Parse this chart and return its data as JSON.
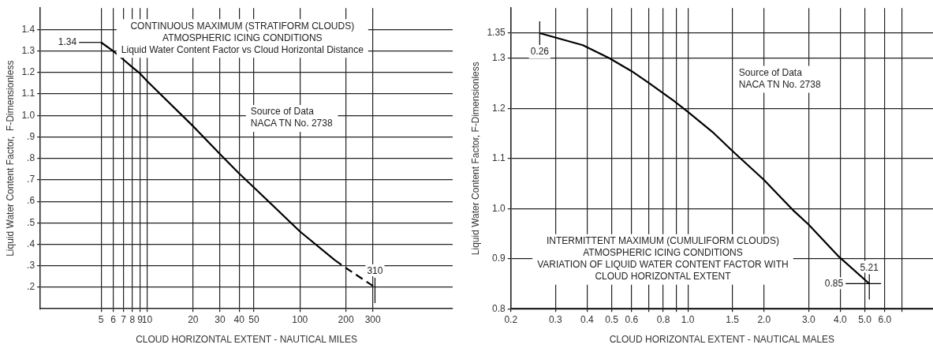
{
  "chart_data": [
    {
      "type": "line",
      "title": "CONTINUOUS MAXIMUM (STRATIFORM CLOUDS)\nATMOSPHERIC ICING CONDITIONS",
      "subtitle": "Liquid Water Content Factor vs Cloud Horizontal Distance",
      "xlabel": "CLOUD HORIZONTAL EXTENT - NAUTICAL MILES",
      "ylabel": "Liquid Water Content Factor,  F-Dimensionless",
      "annotations": [
        {
          "text": "1.34",
          "x": 5,
          "y": 1.34
        },
        {
          "text": "310",
          "x": 310,
          "y": 0.2
        },
        "Source of Data\nNACA TN No. 2738"
      ],
      "series": [
        {
          "color": "#000000",
          "x": [
            5,
            6,
            7,
            8,
            9,
            10,
            20,
            30,
            40,
            50,
            100,
            170
          ],
          "values": [
            1.34,
            1.3,
            1.26,
            1.225,
            1.195,
            1.16,
            0.95,
            0.82,
            0.73,
            0.665,
            0.46,
            0.325
          ],
          "line_style": "solid"
        },
        {
          "color": "#000000",
          "x": [
            170,
            200,
            310
          ],
          "values": [
            0.325,
            0.29,
            0.2
          ],
          "line_style": "dashed"
        }
      ],
      "log": "x",
      "xlim": [
        2,
        1000
      ],
      "ylim": [
        0.1,
        1.5
      ],
      "xticks": [
        5,
        6,
        7,
        8,
        9,
        10,
        20,
        30,
        40,
        50,
        100,
        200,
        300
      ],
      "yticks": [
        {
          "value": 0.2,
          "label": ".2"
        },
        {
          "value": 0.3,
          "label": ".3"
        },
        {
          "value": 0.4,
          "label": ".4"
        },
        {
          "value": 0.5,
          "label": ".5"
        },
        {
          "value": 0.6,
          "label": ".6"
        },
        {
          "value": 0.7,
          "label": ".7"
        },
        {
          "value": 0.8,
          "label": ".8"
        },
        {
          "value": 0.9,
          "label": ".9"
        },
        {
          "value": 1,
          "label": "1.0"
        },
        1.1,
        1.2,
        1.3,
        1.4
      ],
      "grid": true
    },
    {
      "type": "line",
      "title": "INTERMITTENT MAXIMUM (CUMULIFORM CLOUDS)\nATMOSPHERIC ICING CONDITIONS",
      "subtitle": "VARIATION OF LIQUID WATER CONTENT FACTOR WITH\nCLOUD HORIZONTAL EXTENT",
      "xlabel": "CLOUD HORIZONTAL EXTENT - NAUTICAL MALES",
      "ylabel": "Liquid Water Content Factor, F-Dimensionless",
      "annotations": [
        {
          "text": "0.26",
          "x": 0.26,
          "y": 1.35
        },
        {
          "text": "5.21",
          "x": 5.21,
          "y": 0.85
        },
        {
          "text": "0.85",
          "x": 5.21,
          "y": 0.85
        },
        "Source of Data\nNACA TN No. 2738"
      ],
      "series": [
        {
          "color": "#000000",
          "x": [
            0.26,
            0.385,
            0.49,
            0.6,
            0.7,
            0.875,
            1,
            1.25,
            1.5,
            2,
            2.6,
            3,
            3.95,
            5.21
          ],
          "values": [
            1.35,
            1.326,
            1.3,
            1.274,
            1.251,
            1.216,
            1.193,
            1.153,
            1.115,
            1.057,
            0.997,
            0.968,
            0.904,
            0.85
          ],
          "line_style": "solid"
        }
      ],
      "log": "x",
      "xlim": [
        0.2,
        9.3
      ],
      "ylim": [
        0.8,
        1.4
      ],
      "xticks": [
        {
          "value": 0.2,
          "label": "0.2"
        },
        {
          "value": 0.3,
          "label": "0.3"
        },
        {
          "value": 0.4,
          "label": "0.4"
        },
        {
          "value": 0.5,
          "label": "0.5"
        },
        {
          "value": 0.6,
          "label": "0.6"
        },
        {
          "value": 0.7,
          "label": null
        },
        {
          "value": 0.8,
          "label": "0.8"
        },
        {
          "value": 0.9,
          "label": null
        },
        {
          "value": 1,
          "label": "1.0"
        },
        {
          "value": 1.5,
          "label": "1.5"
        },
        {
          "value": 2,
          "label": "2.0"
        },
        {
          "value": 3,
          "label": "3.0"
        },
        {
          "value": 4,
          "label": "4.0"
        },
        {
          "value": 5,
          "label": "5.0"
        },
        {
          "value": 6,
          "label": "6.0"
        },
        {
          "value": 7,
          "label": null
        }
      ],
      "yticks": [
        0.8,
        0.9,
        {
          "value": 1,
          "label": "1.0"
        },
        1.1,
        1.2,
        1.3,
        1.35
      ],
      "grid": true
    }
  ]
}
